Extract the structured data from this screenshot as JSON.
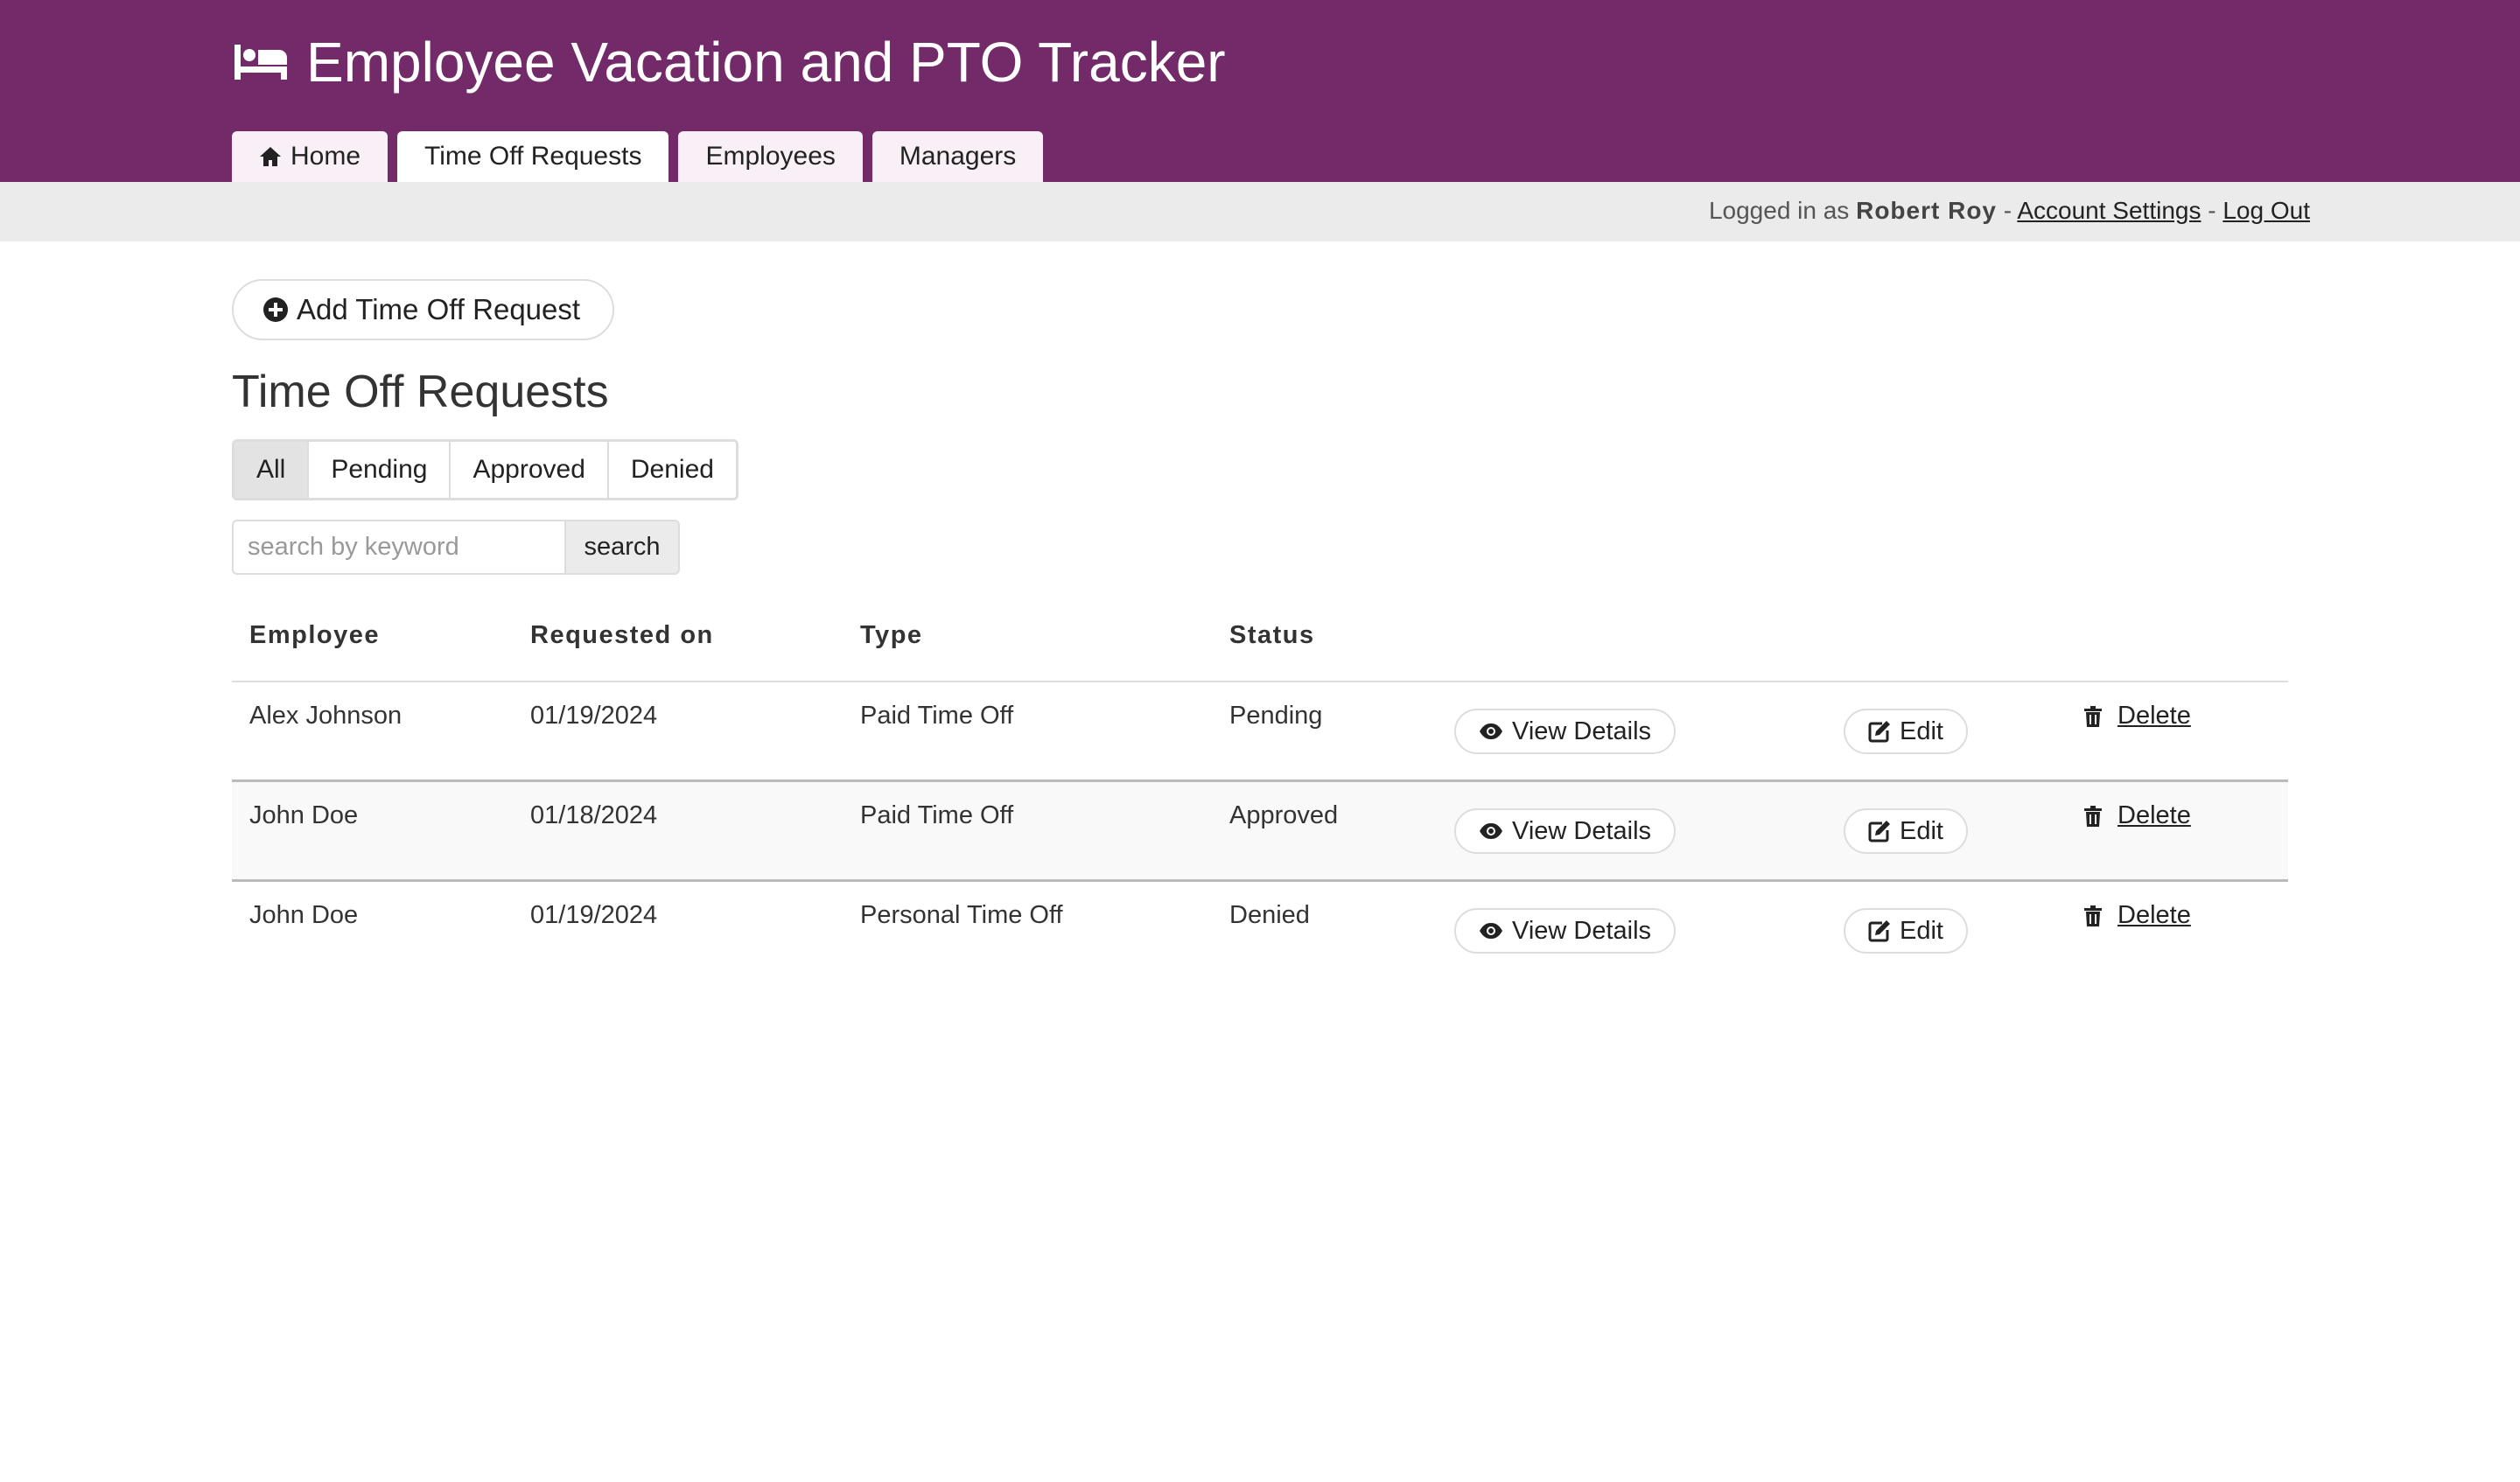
{
  "header": {
    "title": "Employee Vacation and PTO Tracker",
    "icon": "bed-icon",
    "color": "#722b68"
  },
  "nav": {
    "tabs": [
      {
        "label": "Home",
        "icon": "home-icon"
      },
      {
        "label": "Time Off Requests",
        "active": true
      },
      {
        "label": "Employees"
      },
      {
        "label": "Managers"
      }
    ]
  },
  "user": {
    "prefix": "Logged in as",
    "name": "Robert Roy",
    "sep": "-",
    "account_settings": "Account Settings",
    "log_out": "Log Out"
  },
  "main": {
    "add_button": "Add Time Off Request",
    "heading": "Time Off Requests",
    "filters": [
      {
        "label": "All",
        "active": true
      },
      {
        "label": "Pending"
      },
      {
        "label": "Approved"
      },
      {
        "label": "Denied"
      }
    ],
    "search": {
      "placeholder": "search by keyword",
      "value": "",
      "button": "search"
    },
    "table": {
      "columns": [
        "Employee",
        "Requested on",
        "Type",
        "Status"
      ],
      "actions": {
        "view": "View Details",
        "edit": "Edit",
        "delete": "Delete"
      },
      "rows": [
        {
          "employee": "Alex Johnson",
          "requested_on": "01/19/2024",
          "type": "Paid Time Off",
          "status": "Pending"
        },
        {
          "employee": "John Doe",
          "requested_on": "01/18/2024",
          "type": "Paid Time Off",
          "status": "Approved"
        },
        {
          "employee": "John Doe",
          "requested_on": "01/19/2024",
          "type": "Personal Time Off",
          "status": "Denied"
        }
      ]
    }
  }
}
